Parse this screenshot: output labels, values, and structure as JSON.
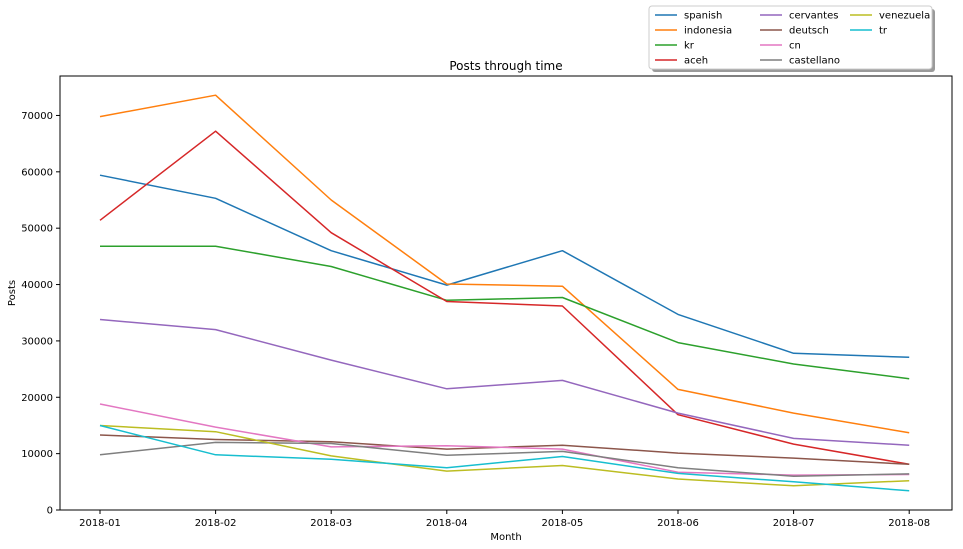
{
  "chart_data": {
    "type": "line",
    "title": "Posts through time",
    "xlabel": "Month",
    "ylabel": "Posts",
    "categories": [
      "2018-01",
      "2018-02",
      "2018-03",
      "2018-04",
      "2018-05",
      "2018-06",
      "2018-07",
      "2018-08"
    ],
    "ylim": [
      0,
      77000
    ],
    "yticks": [
      0,
      10000,
      20000,
      30000,
      40000,
      50000,
      60000,
      70000
    ],
    "grid": false,
    "legend_position": "top-right, above plot",
    "series": [
      {
        "name": "spanish",
        "color": "#1f77b4",
        "values": [
          59400,
          55300,
          46000,
          39900,
          46000,
          34700,
          27800,
          27100
        ]
      },
      {
        "name": "indonesia",
        "color": "#ff7f0e",
        "values": [
          69800,
          73600,
          55000,
          40100,
          39700,
          21400,
          17200,
          13700
        ]
      },
      {
        "name": "kr",
        "color": "#2ca02c",
        "values": [
          46800,
          46800,
          43200,
          37200,
          37700,
          29700,
          25900,
          23300
        ]
      },
      {
        "name": "aceh",
        "color": "#d62728",
        "values": [
          51400,
          67200,
          49200,
          37000,
          36200,
          16900,
          11700,
          8100
        ]
      },
      {
        "name": "cervantes",
        "color": "#9467bd",
        "values": [
          33800,
          32000,
          26600,
          21500,
          23000,
          17200,
          12700,
          11500
        ]
      },
      {
        "name": "deutsch",
        "color": "#8c564b",
        "values": [
          13300,
          12500,
          12100,
          10800,
          11500,
          10100,
          9200,
          8100
        ]
      },
      {
        "name": "cn",
        "color": "#e377c2",
        "values": [
          18800,
          14700,
          11200,
          11400,
          10800,
          6700,
          6200,
          6300
        ]
      },
      {
        "name": "castellano",
        "color": "#7f7f7f",
        "values": [
          9800,
          12000,
          11800,
          9700,
          10400,
          7500,
          6000,
          6400
        ]
      },
      {
        "name": "venezuela",
        "color": "#bcbd22",
        "values": [
          15000,
          13900,
          9600,
          6900,
          7900,
          5500,
          4300,
          5200
        ]
      },
      {
        "name": "tr",
        "color": "#17becf",
        "values": [
          15000,
          9800,
          9000,
          7500,
          9500,
          6500,
          5000,
          3400
        ]
      }
    ]
  }
}
